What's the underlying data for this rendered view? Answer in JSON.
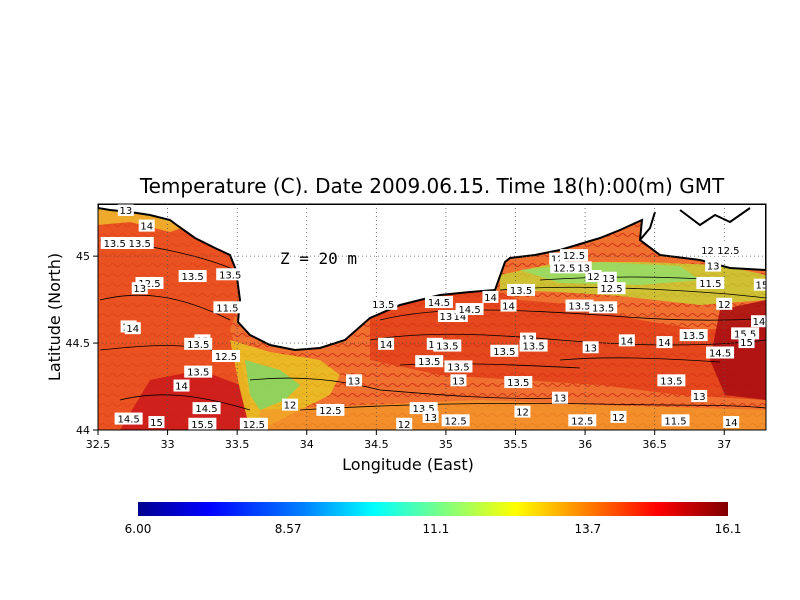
{
  "chart_data": {
    "type": "heatmap",
    "title": "Temperature (C). Date 2009.06.15. Time 18(h):00(m) GMT",
    "xlabel": "Longitude (East)",
    "ylabel": "Latitude (North)",
    "annotation": "Z = 20 m",
    "xlim": [
      32.5,
      37.3
    ],
    "ylim": [
      44.0,
      45.3
    ],
    "x_ticks": [
      "32.5",
      "33",
      "33.5",
      "34",
      "34.5",
      "35",
      "35.5",
      "36",
      "36.5",
      "37"
    ],
    "y_ticks": [
      "44",
      "44.5",
      "45"
    ],
    "x_tick_values": [
      32.5,
      33,
      33.5,
      34,
      34.5,
      35,
      35.5,
      36,
      36.5,
      37
    ],
    "y_tick_values": [
      44,
      44.5,
      45
    ],
    "grid": true,
    "colorbar": {
      "min": 6.0,
      "max": 16.1,
      "tick_labels": [
        "6.00",
        "8.57",
        "11.1",
        "13.7",
        "16.1"
      ],
      "tick_values": [
        6.0,
        8.57,
        11.1,
        13.7,
        16.1
      ],
      "colors": [
        "#00008f",
        "#0000ff",
        "#0080ff",
        "#00ffff",
        "#80ff80",
        "#ffff00",
        "#ff8000",
        "#ff0000",
        "#800000"
      ]
    },
    "contour_labels": [
      {
        "text": "13",
        "lon": 32.7,
        "lat": 45.26
      },
      {
        "text": "14",
        "lon": 32.85,
        "lat": 45.17
      },
      {
        "text": "13.5",
        "lon": 32.62,
        "lat": 45.07
      },
      {
        "text": "13.5",
        "lon": 32.8,
        "lat": 45.07
      },
      {
        "text": "12.5",
        "lon": 32.87,
        "lat": 44.84
      },
      {
        "text": "13",
        "lon": 32.8,
        "lat": 44.81
      },
      {
        "text": "13.5",
        "lon": 33.18,
        "lat": 44.88
      },
      {
        "text": "13.5",
        "lon": 33.45,
        "lat": 44.89
      },
      {
        "text": "11.5",
        "lon": 33.43,
        "lat": 44.7
      },
      {
        "text": "14",
        "lon": 32.72,
        "lat": 44.59
      },
      {
        "text": "14",
        "lon": 32.75,
        "lat": 44.58
      },
      {
        "text": "13",
        "lon": 33.25,
        "lat": 44.51
      },
      {
        "text": "13.5",
        "lon": 33.22,
        "lat": 44.49
      },
      {
        "text": "12.5",
        "lon": 33.42,
        "lat": 44.42
      },
      {
        "text": "13.5",
        "lon": 33.22,
        "lat": 44.33
      },
      {
        "text": "14",
        "lon": 33.1,
        "lat": 44.25
      },
      {
        "text": "14.5",
        "lon": 33.28,
        "lat": 44.12
      },
      {
        "text": "14.5",
        "lon": 32.72,
        "lat": 44.06
      },
      {
        "text": "15",
        "lon": 32.92,
        "lat": 44.04
      },
      {
        "text": "15.5",
        "lon": 33.25,
        "lat": 44.03
      },
      {
        "text": "12.5",
        "lon": 33.62,
        "lat": 44.03
      },
      {
        "text": "12",
        "lon": 33.88,
        "lat": 44.14
      },
      {
        "text": "12.5",
        "lon": 34.17,
        "lat": 44.11
      },
      {
        "text": "12",
        "lon": 34.7,
        "lat": 44.03
      },
      {
        "text": "13.5",
        "lon": 34.84,
        "lat": 44.12
      },
      {
        "text": "13",
        "lon": 34.89,
        "lat": 44.07
      },
      {
        "text": "12.5",
        "lon": 35.07,
        "lat": 44.05
      },
      {
        "text": "12",
        "lon": 35.55,
        "lat": 44.1
      },
      {
        "text": "12.5",
        "lon": 35.98,
        "lat": 44.05
      },
      {
        "text": "12",
        "lon": 36.24,
        "lat": 44.07
      },
      {
        "text": "11.5",
        "lon": 36.65,
        "lat": 44.05
      },
      {
        "text": "14",
        "lon": 37.05,
        "lat": 44.04
      },
      {
        "text": "13",
        "lon": 34.34,
        "lat": 44.28
      },
      {
        "text": "13.5",
        "lon": 34.88,
        "lat": 44.39
      },
      {
        "text": "13.5",
        "lon": 35.09,
        "lat": 44.36
      },
      {
        "text": "13",
        "lon": 35.09,
        "lat": 44.28
      },
      {
        "text": "13.5",
        "lon": 35.52,
        "lat": 44.27
      },
      {
        "text": "13",
        "lon": 35.82,
        "lat": 44.18
      },
      {
        "text": "13.5",
        "lon": 36.62,
        "lat": 44.28
      },
      {
        "text": "13",
        "lon": 36.82,
        "lat": 44.19
      },
      {
        "text": "14",
        "lon": 34.57,
        "lat": 44.49
      },
      {
        "text": "14",
        "lon": 34.92,
        "lat": 44.49
      },
      {
        "text": "13.5",
        "lon": 35.01,
        "lat": 44.48
      },
      {
        "text": "13.5",
        "lon": 35.42,
        "lat": 44.45
      },
      {
        "text": "13",
        "lon": 35.59,
        "lat": 44.52
      },
      {
        "text": "13.5",
        "lon": 35.63,
        "lat": 44.48
      },
      {
        "text": "13",
        "lon": 36.04,
        "lat": 44.47
      },
      {
        "text": "14",
        "lon": 36.3,
        "lat": 44.51
      },
      {
        "text": "14",
        "lon": 36.57,
        "lat": 44.5
      },
      {
        "text": "13.5",
        "lon": 36.78,
        "lat": 44.54
      },
      {
        "text": "14.5",
        "lon": 36.97,
        "lat": 44.44
      },
      {
        "text": "15.5",
        "lon": 37.15,
        "lat": 44.55
      },
      {
        "text": "15",
        "lon": 37.16,
        "lat": 44.5
      },
      {
        "text": "14",
        "lon": 37.25,
        "lat": 44.62
      },
      {
        "text": "13.5",
        "lon": 34.55,
        "lat": 44.72
      },
      {
        "text": "14.5",
        "lon": 34.95,
        "lat": 44.73
      },
      {
        "text": "13",
        "lon": 35.0,
        "lat": 44.65
      },
      {
        "text": "14",
        "lon": 35.1,
        "lat": 44.65
      },
      {
        "text": "14.5",
        "lon": 35.17,
        "lat": 44.69
      },
      {
        "text": "14",
        "lon": 35.32,
        "lat": 44.76
      },
      {
        "text": "14",
        "lon": 35.45,
        "lat": 44.71
      },
      {
        "text": "13.5",
        "lon": 35.54,
        "lat": 44.8
      },
      {
        "text": "13.5",
        "lon": 35.96,
        "lat": 44.71
      },
      {
        "text": "13.5",
        "lon": 36.13,
        "lat": 44.7
      },
      {
        "text": "12.5",
        "lon": 36.19,
        "lat": 44.81
      },
      {
        "text": "13",
        "lon": 36.17,
        "lat": 44.87
      },
      {
        "text": "12",
        "lon": 36.06,
        "lat": 44.88
      },
      {
        "text": "12",
        "lon": 35.8,
        "lat": 44.98
      },
      {
        "text": "12.5",
        "lon": 35.85,
        "lat": 44.93
      },
      {
        "text": "13",
        "lon": 35.99,
        "lat": 44.93
      },
      {
        "text": "12.5",
        "lon": 35.92,
        "lat": 45.0
      },
      {
        "text": "12",
        "lon": 36.88,
        "lat": 45.03
      },
      {
        "text": "12.5",
        "lon": 37.03,
        "lat": 45.03
      },
      {
        "text": "13",
        "lon": 36.92,
        "lat": 44.94
      },
      {
        "text": "11.5",
        "lon": 36.9,
        "lat": 44.84
      },
      {
        "text": "12",
        "lon": 37.0,
        "lat": 44.72
      },
      {
        "text": "15",
        "lon": 37.27,
        "lat": 44.83
      }
    ]
  }
}
